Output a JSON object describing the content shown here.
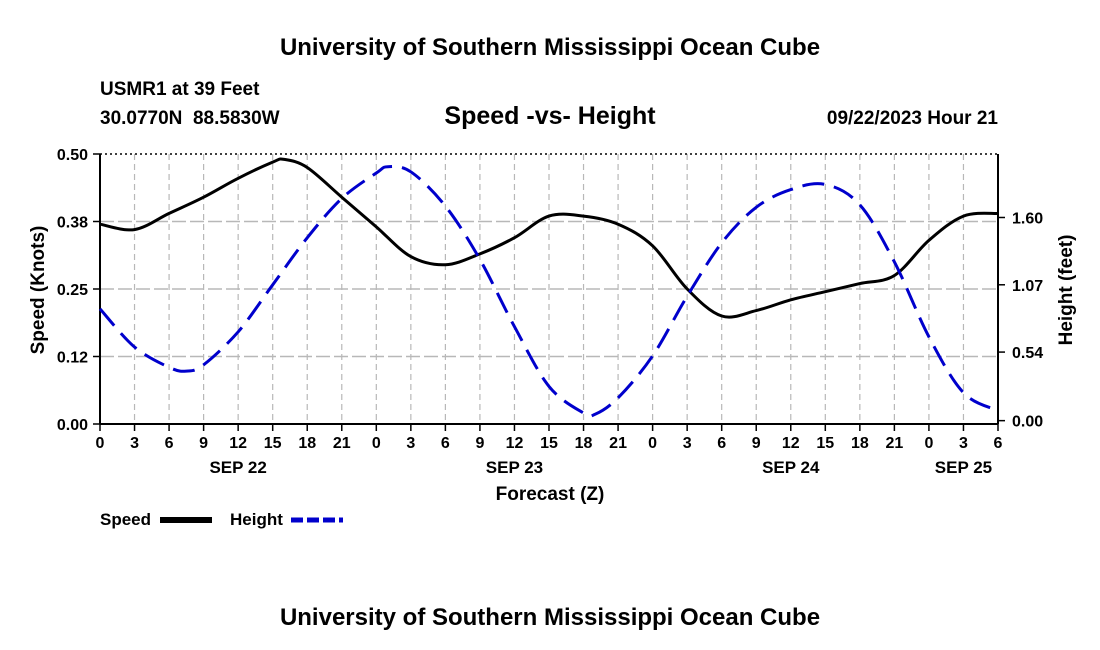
{
  "header": {
    "title": "University of Southern Mississippi Ocean Cube",
    "station": "USMR1 at 39 Feet",
    "coords": "30.0770N  88.5830W",
    "chart_title": "Speed -vs- Height",
    "datetime": "09/22/2023 Hour 21"
  },
  "footer": {
    "title": "University of Southern Mississippi Ocean Cube"
  },
  "legend": {
    "speed_label": "Speed",
    "height_label": "Height"
  },
  "colors": {
    "speed": "#000000",
    "height": "#0000cc",
    "grid": "#b8b8b8"
  },
  "chart_data": {
    "type": "line",
    "title": "Speed -vs- Height",
    "xlabel": "Forecast (Z)",
    "ylabel_left": "Speed (Knots)",
    "ylabel_right": "Height (feet)",
    "x_unit": "hours since 2023-09-22 00Z",
    "xlim": [
      0,
      78
    ],
    "x_tick_values": [
      0,
      3,
      6,
      9,
      12,
      15,
      18,
      21,
      24,
      27,
      30,
      33,
      36,
      39,
      42,
      45,
      48,
      51,
      54,
      57,
      60,
      63,
      66,
      69,
      72,
      75,
      78
    ],
    "x_tick_labels": [
      "0",
      "3",
      "6",
      "9",
      "12",
      "15",
      "18",
      "21",
      "0",
      "3",
      "6",
      "9",
      "12",
      "15",
      "18",
      "21",
      "0",
      "3",
      "6",
      "9",
      "12",
      "15",
      "18",
      "21",
      "0",
      "3",
      "6"
    ],
    "date_labels": [
      {
        "hour": 12,
        "label": "SEP 22"
      },
      {
        "hour": 36,
        "label": "SEP 23"
      },
      {
        "hour": 60,
        "label": "SEP 24"
      },
      {
        "hour": 75,
        "label": "SEP 25"
      }
    ],
    "y_left_lim": [
      0,
      0.5
    ],
    "y_left_ticks": [
      "0.00",
      "0.12",
      "0.25",
      "0.38",
      "0.50"
    ],
    "y_left_tick_values": [
      0,
      0.125,
      0.25,
      0.375,
      0.5
    ],
    "y_right_lim": [
      -0.0264,
      2.1
    ],
    "y_right_ticks": [
      "0.00",
      "0.54",
      "1.07",
      "1.60"
    ],
    "y_right_tick_values": [
      0,
      0.54,
      1.07,
      1.6
    ],
    "grid": true,
    "series": [
      {
        "name": "Speed",
        "axis": "left",
        "style": "solid",
        "x": [
          0,
          3,
          6,
          9,
          12,
          15,
          16,
          18,
          21,
          24,
          27,
          30,
          33,
          36,
          39,
          42,
          45,
          48,
          51,
          54,
          57,
          60,
          63,
          66,
          69,
          72,
          75,
          78
        ],
        "values": [
          0.37,
          0.36,
          0.39,
          0.42,
          0.455,
          0.485,
          0.49,
          0.475,
          0.42,
          0.365,
          0.31,
          0.295,
          0.315,
          0.345,
          0.385,
          0.385,
          0.37,
          0.33,
          0.25,
          0.2,
          0.21,
          0.23,
          0.245,
          0.26,
          0.275,
          0.34,
          0.385,
          0.39
        ]
      },
      {
        "name": "Height",
        "axis": "right",
        "style": "dashed",
        "x": [
          0,
          3,
          6,
          7.5,
          9,
          12,
          15,
          18,
          21,
          24,
          25,
          27,
          30,
          33,
          36,
          39,
          42,
          43,
          45,
          48,
          51,
          54,
          57,
          60,
          63,
          66,
          69,
          72,
          75,
          78
        ],
        "values": [
          0.88,
          0.58,
          0.42,
          0.39,
          0.44,
          0.7,
          1.07,
          1.44,
          1.75,
          1.95,
          2.0,
          1.96,
          1.69,
          1.27,
          0.74,
          0.27,
          0.06,
          0.05,
          0.18,
          0.51,
          0.98,
          1.4,
          1.68,
          1.82,
          1.86,
          1.7,
          1.25,
          0.66,
          0.22,
          0.08
        ]
      }
    ]
  }
}
